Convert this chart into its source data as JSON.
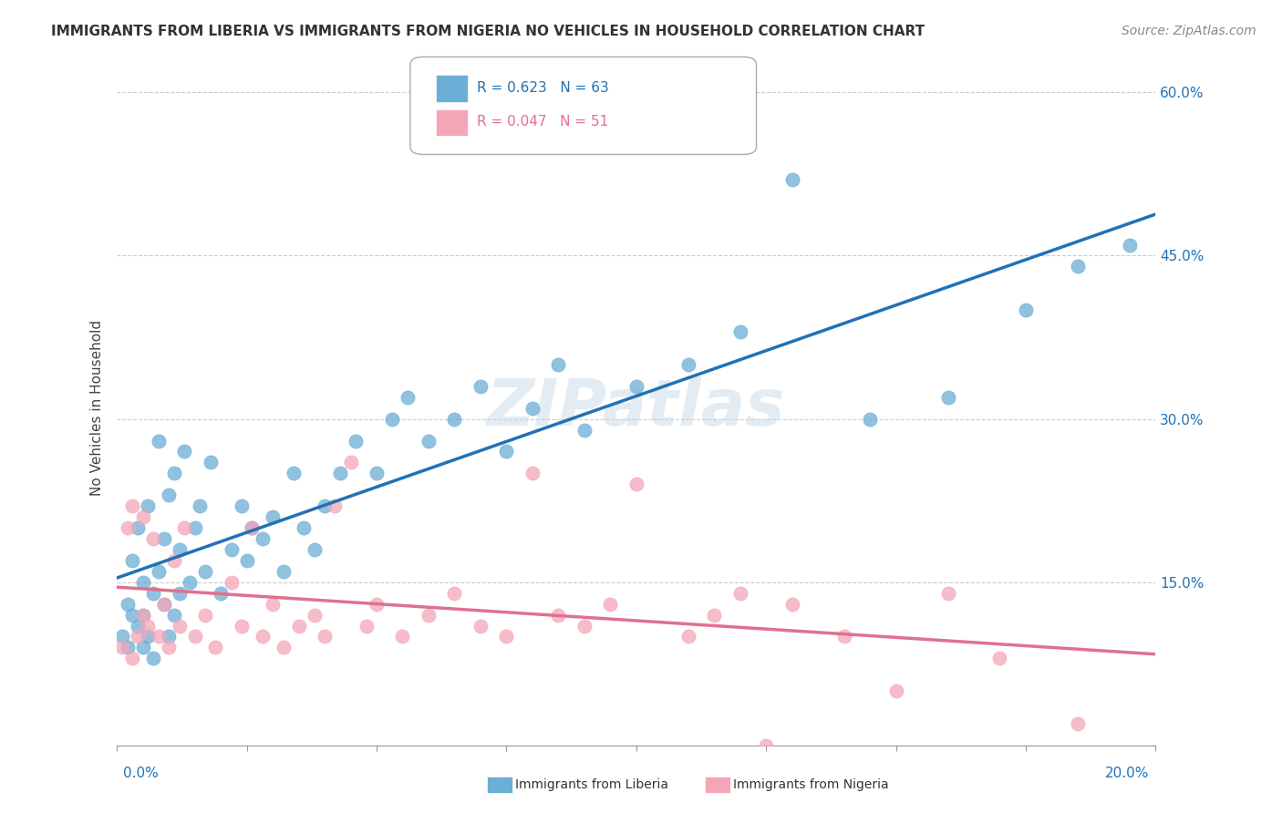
{
  "title": "IMMIGRANTS FROM LIBERIA VS IMMIGRANTS FROM NIGERIA NO VEHICLES IN HOUSEHOLD CORRELATION CHART",
  "source_text": "Source: ZipAtlas.com",
  "ylabel": "No Vehicles in Household",
  "legend_liberia": "Immigrants from Liberia",
  "legend_nigeria": "Immigrants from Nigeria",
  "R_liberia": 0.623,
  "N_liberia": 63,
  "R_nigeria": 0.047,
  "N_nigeria": 51,
  "color_liberia": "#6baed6",
  "color_nigeria": "#f4a6b8",
  "line_color_liberia": "#2171b5",
  "line_color_nigeria": "#e07090",
  "watermark_text": "ZIPatlas",
  "watermark_color": "#c8d8e8",
  "xmin": 0.0,
  "xmax": 0.2,
  "ymin": 0.0,
  "ymax": 0.62,
  "yticks": [
    0.0,
    0.15,
    0.3,
    0.45,
    0.6
  ],
  "ytick_labels": [
    "",
    "15.0%",
    "30.0%",
    "45.0%",
    "60.0%"
  ],
  "liberia_x": [
    0.001,
    0.002,
    0.002,
    0.003,
    0.003,
    0.004,
    0.004,
    0.005,
    0.005,
    0.005,
    0.006,
    0.006,
    0.007,
    0.007,
    0.008,
    0.008,
    0.009,
    0.009,
    0.01,
    0.01,
    0.011,
    0.011,
    0.012,
    0.012,
    0.013,
    0.014,
    0.015,
    0.016,
    0.017,
    0.018,
    0.02,
    0.022,
    0.024,
    0.025,
    0.026,
    0.028,
    0.03,
    0.032,
    0.034,
    0.036,
    0.038,
    0.04,
    0.043,
    0.046,
    0.05,
    0.053,
    0.056,
    0.06,
    0.065,
    0.07,
    0.075,
    0.08,
    0.085,
    0.09,
    0.1,
    0.11,
    0.12,
    0.13,
    0.145,
    0.16,
    0.175,
    0.185,
    0.195
  ],
  "liberia_y": [
    0.1,
    0.09,
    0.13,
    0.12,
    0.17,
    0.11,
    0.2,
    0.09,
    0.12,
    0.15,
    0.1,
    0.22,
    0.08,
    0.14,
    0.16,
    0.28,
    0.13,
    0.19,
    0.1,
    0.23,
    0.12,
    0.25,
    0.14,
    0.18,
    0.27,
    0.15,
    0.2,
    0.22,
    0.16,
    0.26,
    0.14,
    0.18,
    0.22,
    0.17,
    0.2,
    0.19,
    0.21,
    0.16,
    0.25,
    0.2,
    0.18,
    0.22,
    0.25,
    0.28,
    0.25,
    0.3,
    0.32,
    0.28,
    0.3,
    0.33,
    0.27,
    0.31,
    0.35,
    0.29,
    0.33,
    0.35,
    0.38,
    0.52,
    0.3,
    0.32,
    0.4,
    0.44,
    0.46
  ],
  "nigeria_x": [
    0.001,
    0.002,
    0.003,
    0.003,
    0.004,
    0.005,
    0.005,
    0.006,
    0.007,
    0.008,
    0.009,
    0.01,
    0.011,
    0.012,
    0.013,
    0.015,
    0.017,
    0.019,
    0.022,
    0.024,
    0.026,
    0.028,
    0.03,
    0.032,
    0.035,
    0.038,
    0.04,
    0.042,
    0.045,
    0.048,
    0.05,
    0.055,
    0.06,
    0.065,
    0.07,
    0.075,
    0.08,
    0.085,
    0.09,
    0.095,
    0.1,
    0.11,
    0.115,
    0.12,
    0.125,
    0.13,
    0.14,
    0.15,
    0.16,
    0.17,
    0.185
  ],
  "nigeria_y": [
    0.09,
    0.2,
    0.08,
    0.22,
    0.1,
    0.12,
    0.21,
    0.11,
    0.19,
    0.1,
    0.13,
    0.09,
    0.17,
    0.11,
    0.2,
    0.1,
    0.12,
    0.09,
    0.15,
    0.11,
    0.2,
    0.1,
    0.13,
    0.09,
    0.11,
    0.12,
    0.1,
    0.22,
    0.26,
    0.11,
    0.13,
    0.1,
    0.12,
    0.14,
    0.11,
    0.1,
    0.25,
    0.12,
    0.11,
    0.13,
    0.24,
    0.1,
    0.12,
    0.14,
    0.0,
    0.13,
    0.1,
    0.05,
    0.14,
    0.08,
    0.02
  ]
}
